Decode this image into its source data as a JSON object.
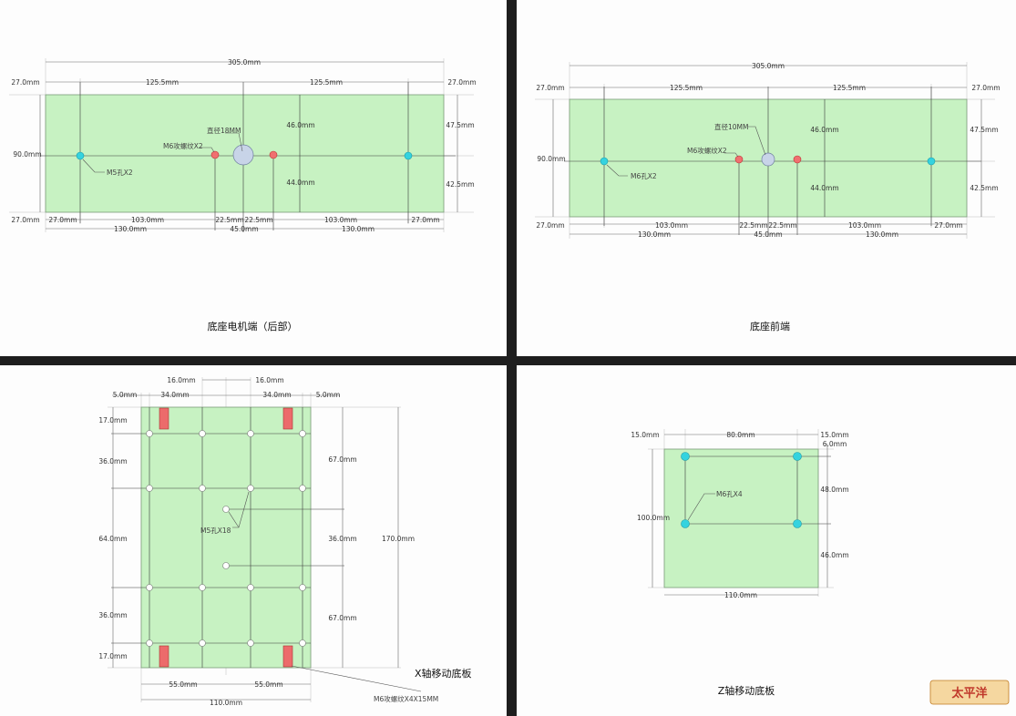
{
  "colors": {
    "plate": "#c7f2c2",
    "hole_cyan": "#34d3df",
    "hole_red": "#f07070",
    "hole_center": "#c8d4e8",
    "slot": "#ec6b6b",
    "frame": "#1e1e1e"
  },
  "p1": {
    "caption": "底座电机端（后部）",
    "top": {
      "total": "305.0mm",
      "left_edge": "27.0mm",
      "left_span": "125.5mm",
      "right_span": "125.5mm",
      "right_edge": "27.0mm"
    },
    "left": {
      "height": "90.0mm",
      "top_edge": "27.0mm",
      "bottom_edge": "27.0mm"
    },
    "right": {
      "upper": "47.5mm",
      "lower": "42.5mm"
    },
    "inner": {
      "upper": "46.0mm",
      "lower": "44.0mm"
    },
    "bottom1": {
      "a": "27.0mm",
      "b": "103.0mm",
      "c": "22.5mm",
      "d": "22.5mm",
      "e": "103.0mm",
      "f": "27.0mm"
    },
    "bottom2": {
      "a": "130.0mm",
      "b": "45.0mm",
      "c": "130.0mm"
    },
    "labels": {
      "center": "直径18MM",
      "red": "M6攻螺纹X2",
      "cyan": "M5孔X2"
    }
  },
  "p2": {
    "caption": "底座前端",
    "top": {
      "total": "305.0mm",
      "left_edge": "27.0mm",
      "left_span": "125.5mm",
      "right_span": "125.5mm",
      "right_edge": "27.0mm"
    },
    "left": {
      "height": "90.0mm",
      "bottom_edge": "27.0mm"
    },
    "right": {
      "upper": "47.5mm",
      "lower": "42.5mm"
    },
    "inner": {
      "upper": "46.0mm",
      "lower": "44.0mm"
    },
    "bottom1": {
      "a": "103.0mm",
      "b": "22.5mm",
      "c": "22.5mm",
      "d": "103.0mm",
      "e": "27.0mm"
    },
    "bottom2": {
      "a": "130.0mm",
      "b": "45.0mm",
      "c": "130.0mm"
    },
    "labels": {
      "center": "直径10MM",
      "red": "M6攻螺纹X2",
      "cyan": "M6孔X2"
    }
  },
  "p3": {
    "caption": "X轴移动底板",
    "top": {
      "mid_left": "16.0mm",
      "mid_right": "16.0mm",
      "edge_left": "5.0mm",
      "span_left": "34.0mm",
      "span_right": "34.0mm",
      "edge_right": "5.0mm"
    },
    "left": {
      "a": "17.0mm",
      "b": "36.0mm",
      "c": "64.0mm",
      "d": "36.0mm",
      "e": "17.0mm"
    },
    "right": {
      "a": "67.0mm",
      "b": "36.0mm",
      "c": "67.0mm",
      "total": "170.0mm"
    },
    "bottom": {
      "left": "55.0mm",
      "right": "55.0mm",
      "total": "110.0mm"
    },
    "labels": {
      "holes": "M5孔X18",
      "slots": "M6攻螺纹X4X15MM"
    }
  },
  "p4": {
    "caption": "Z轴移动底板",
    "top": {
      "left": "15.0mm",
      "mid": "80.0mm",
      "right": "15.0mm"
    },
    "right": {
      "top": "6.0mm",
      "mid": "48.0mm",
      "low": "46.0mm"
    },
    "left": {
      "height": "100.0mm"
    },
    "bottom": {
      "width": "110.0mm"
    },
    "labels": {
      "holes": "M6孔X4"
    }
  },
  "logo": {
    "text": "太平洋"
  }
}
